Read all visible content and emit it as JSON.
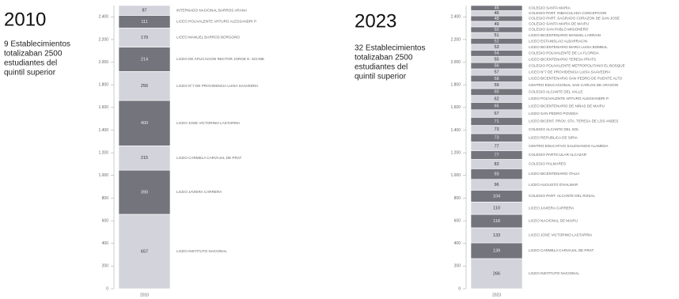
{
  "chart_data": [
    {
      "type": "stacked-bar",
      "title": "2010",
      "subtitle": [
        "9 Establecimientos",
        "totalizaban 2500",
        "estudiantes del",
        "quintil superior"
      ],
      "category": "2010",
      "colors": [
        "#d3d3db",
        "#74747c"
      ],
      "ylim": [
        0,
        2500
      ],
      "yticks": [
        0,
        {
          "value": 200,
          "label": "200"
        },
        {
          "value": 400,
          "label": "400"
        },
        {
          "value": 600,
          "label": "600"
        },
        {
          "value": 800,
          "label": "800"
        },
        {
          "value": 1000,
          "label": "1.000"
        },
        {
          "value": 1200,
          "label": "1.200"
        },
        {
          "value": 1400,
          "label": "1.400"
        },
        {
          "value": 1600,
          "label": "1.600"
        },
        {
          "value": 1800,
          "label": "1.800"
        },
        {
          "value": 2000,
          "label": "2.000"
        },
        {
          "value": 2200,
          "label": "2.200"
        },
        {
          "value": 2400,
          "label": "2.400"
        }
      ],
      "segments": [
        {
          "name": "LICEO INSTITUTO NACIONAL",
          "value": 657
        },
        {
          "name": "LICEO JAVIERA CARRERA",
          "value": 390
        },
        {
          "name": "LICEO CARMELA CARVAJAL DE PRAT",
          "value": 215
        },
        {
          "name": "LICEO JOSE VICTORINO LASTARRIA",
          "value": 400
        },
        {
          "name": "LICEO N°7 DE PROVIDENCIA LUISA SAAVEDRA",
          "value": 256
        },
        {
          "name": "LICEO DE APLICACION RECTOR JORGE E. SCHNE",
          "value": 214
        },
        {
          "name": "LICEO MANUEL BARROS BORGOÑO",
          "value": 170
        },
        {
          "name": "LICEO POLIVALENTE ARTURO ALESSANDRI P.",
          "value": 111
        },
        {
          "name": "INTERNADO NACIONAL BARROS ARANA",
          "value": 87
        }
      ]
    },
    {
      "type": "stacked-bar",
      "title": "2023",
      "subtitle": [
        "32 Establecimientos",
        "totalizaban 2500",
        "estudiantes del",
        "quintil superior"
      ],
      "category": "2023",
      "colors": [
        "#d3d3db",
        "#74747c"
      ],
      "ylim": [
        0,
        2500
      ],
      "yticks": [
        0,
        {
          "value": 200,
          "label": "200"
        },
        {
          "value": 400,
          "label": "400"
        },
        {
          "value": 600,
          "label": "600"
        },
        {
          "value": 800,
          "label": "800"
        },
        {
          "value": 1000,
          "label": "1.000"
        },
        {
          "value": 1200,
          "label": "1.200"
        },
        {
          "value": 1400,
          "label": "1.400"
        },
        {
          "value": 1600,
          "label": "1.600"
        },
        {
          "value": 1800,
          "label": "1.800"
        },
        {
          "value": 2000,
          "label": "2.000"
        },
        {
          "value": 2200,
          "label": "2.200"
        },
        {
          "value": 2400,
          "label": "2.400"
        }
      ],
      "segments": [
        {
          "name": "LICEO INSTITUTO NACIONAL",
          "value": 266
        },
        {
          "name": "LICEO CARMELA CARVAJAL DE PRAT",
          "value": 139
        },
        {
          "name": "LICEO JOSE VICTORINO LASTARRIA",
          "value": 133
        },
        {
          "name": "LICEO NACIONAL DE MAIPU",
          "value": 118
        },
        {
          "name": "LICEO JAVIERA CARRERA",
          "value": 110
        },
        {
          "name": "COLEGIO PART. ALCANTE DEL ROSAL",
          "value": 104
        },
        {
          "name": "LICEO AUGUSTO D'HALMAR",
          "value": 96
        },
        {
          "name": "LICEO BICENTENARIO ITALIA",
          "value": 93
        },
        {
          "name": "COLEGIO PALMARES",
          "value": 83
        },
        {
          "name": "COLEGIO PARTICULAR ALCAZAR",
          "value": 77
        },
        {
          "name": "CENTRO EDUCATIVO SALESIANOS ALAMEDA",
          "value": 77
        },
        {
          "name": "LICEO REPUBLICA DE SIRIA",
          "value": 73
        },
        {
          "name": "COLEGIO ALCANTE DEL SOL",
          "value": 73
        },
        {
          "name": "LICEO BICENT. PROV. STA. TERESA DE LOS ANDES",
          "value": 71
        },
        {
          "name": "LICEO SAN PEDRO POVEDA",
          "value": 67
        },
        {
          "name": "LICEO BICENTENARIO DE NIÑAS DE MAIPU",
          "value": 65
        },
        {
          "name": "LICEO POLIVALENTE ARTURO ALESSANDRI P.",
          "value": 62
        },
        {
          "name": "COLEGIO ALCANTE DEL VALLE",
          "value": 60
        },
        {
          "name": "CENTRO EDUCACIONAL SAN CARLOS DE ARAGON",
          "value": 59
        },
        {
          "name": "LICEO BICENTENARIO SAN PEDRO DE PUENTE ALTO",
          "value": 58
        },
        {
          "name": "LICEO N°7 DE PROVIDENCIA LUISA SAAVEDRA",
          "value": 57
        },
        {
          "name": "COLEGIO POLIVALENTE METROPOLITANO EL BOSQUE",
          "value": 56
        },
        {
          "name": "LICEO BICENTENARIO TERESA PRATS",
          "value": 55
        },
        {
          "name": "COLEGIO POLIVALENTE DE LA FLORIDA",
          "value": 54
        },
        {
          "name": "LICEO BICENTENARIO MARIA LUISA BOMBAL",
          "value": 53
        },
        {
          "name": "LICEO ESTANISLAO ALBARRACIN",
          "value": 52
        },
        {
          "name": "LICEO BICENTENARIO MANUEL LARRAIN",
          "value": 51
        },
        {
          "name": "COLEGIO SAN PABLO MISIONERO",
          "value": 50
        },
        {
          "name": "COLEGIO SANTA MARIA DE MAIPU",
          "value": 49
        },
        {
          "name": "COLEGIO PART. SAGRADO CORAZON DE SAN JOSE",
          "value": 48
        },
        {
          "name": "COLEGIO PART. INMACULADA CONCEPCION",
          "value": 46
        },
        {
          "name": "COLEGIO SANTA MARIA",
          "value": 45
        }
      ]
    }
  ]
}
